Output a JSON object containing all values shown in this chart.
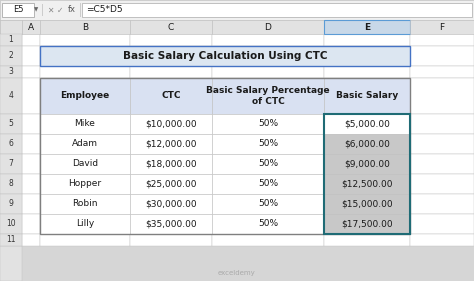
{
  "title": "Basic Salary Calculation Using CTC",
  "formula_bar": "=C5*D5",
  "cell_ref": "E5",
  "table_headers": [
    "Employee",
    "CTC",
    "Basic Salary Percentage\nof CTC",
    "Basic Salary"
  ],
  "employees": [
    "Mike",
    "Adam",
    "David",
    "Hopper",
    "Robin",
    "Lilly"
  ],
  "ctc": [
    "$10,000.00",
    "$12,000.00",
    "$18,000.00",
    "$25,000.00",
    "$30,000.00",
    "$35,000.00"
  ],
  "percentage": [
    "50%",
    "50%",
    "50%",
    "50%",
    "50%",
    "50%"
  ],
  "basic_salary": [
    "$5,000.00",
    "$6,000.00",
    "$9,000.00",
    "$12,500.00",
    "$15,000.00",
    "$17,500.00"
  ],
  "bg_color": "#d6d6d6",
  "excel_bg": "#ffffff",
  "header_fill": "#d9e1f2",
  "title_fill": "#dce6f1",
  "grid_color": "#bfbfbf",
  "ribbon_bg": "#f0f0f0",
  "col_header_bg": "#e2e2e2",
  "row_header_bg": "#e2e2e2",
  "selected_col_header_bg": "#c8d8e8",
  "title_border_color": "#4472c4",
  "selected_border_color": "#1f6b75",
  "e_col_data_fill_alt": "#c8c8c8",
  "e_col_row5_fill": "#ffffff"
}
